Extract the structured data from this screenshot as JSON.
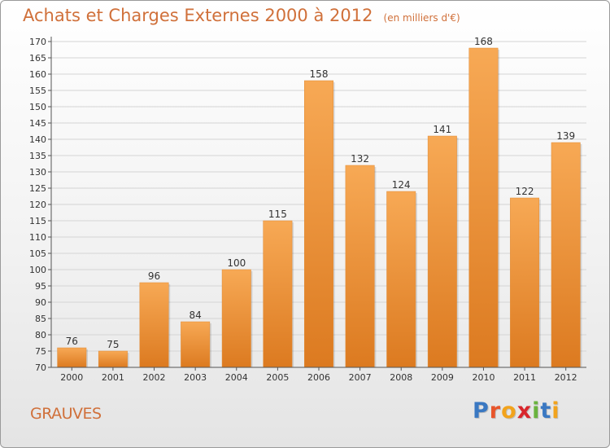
{
  "header": {
    "title": "Achats et Charges Externes 2000 à 2012",
    "units": "(en milliers d'€)"
  },
  "footer": {
    "commune": "GRAUVES",
    "logo_text": "Proxiti"
  },
  "colors": {
    "title": "#d0703a",
    "bar_top": "#f7a955",
    "bar_bottom": "#dc7a20",
    "grid": "#d4d4d4",
    "axis": "#555555",
    "logo_letters": [
      "#3a78c2",
      "#e8552b",
      "#f2a31c",
      "#d8262c",
      "#6ab33e",
      "#3a78c2",
      "#f2a31c"
    ]
  },
  "chart_data": {
    "type": "bar",
    "title": "Achats et Charges Externes 2000 à 2012",
    "subtitle": "(en milliers d'€)",
    "categories": [
      "2000",
      "2001",
      "2002",
      "2003",
      "2004",
      "2005",
      "2006",
      "2007",
      "2008",
      "2009",
      "2010",
      "2011",
      "2012"
    ],
    "values": [
      76,
      75,
      96,
      84,
      100,
      115,
      158,
      132,
      124,
      141,
      168,
      122,
      139
    ],
    "ylim": [
      70,
      170
    ],
    "ytick_step": 5,
    "yticks": [
      "70",
      "75",
      "80",
      "85",
      "90",
      "95",
      "100",
      "105",
      "110",
      "115",
      "120",
      "125",
      "130",
      "135",
      "140",
      "145",
      "150",
      "155",
      "160",
      "165",
      "170"
    ],
    "grid": true,
    "data_labels": true
  }
}
